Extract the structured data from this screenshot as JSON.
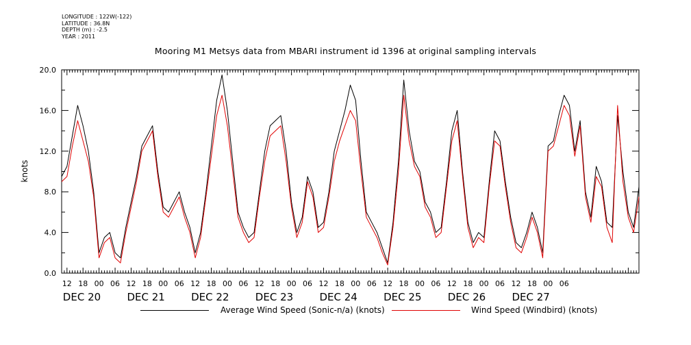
{
  "header": {
    "longitude": "LONGITUDE : 122W(-122)",
    "latitude": "LATITUDE : 36.8N",
    "depth": "DEPTH (m) : -2.5",
    "year": "YEAR : 2011"
  },
  "chart_data": {
    "type": "line",
    "title": "Mooring M1 Metsys data from MBARI instrument id 1396 at original sampling intervals",
    "ylabel": "knots",
    "xlabel": "",
    "ylim": [
      0,
      20
    ],
    "yticks": [
      "0.0",
      "4.0",
      "8.0",
      "12.0",
      "16.0",
      "20.0"
    ],
    "xlim_hours": [
      10,
      226
    ],
    "hour_ticks": [
      "12",
      "18",
      "00",
      "06",
      "12",
      "18",
      "00",
      "06",
      "12",
      "18",
      "00",
      "06",
      "12",
      "18",
      "00",
      "06",
      "12",
      "18",
      "00",
      "06",
      "12",
      "18",
      "00",
      "06",
      "12",
      "18",
      "00",
      "06",
      "12",
      "18",
      "00",
      "06"
    ],
    "day_labels": [
      "DEC 20",
      "DEC 21",
      "DEC 22",
      "DEC 23",
      "DEC 24",
      "DEC 25",
      "DEC 26",
      "DEC 27"
    ],
    "grid": false,
    "legend_position": "bottom",
    "series": [
      {
        "name": "Average Wind Speed (Sonic-n/a) (knots)",
        "color": "#000000",
        "x": [
          10,
          12,
          14,
          16,
          18,
          20,
          22,
          24,
          26,
          28,
          30,
          32,
          34,
          36,
          38,
          40,
          42,
          44,
          46,
          48,
          50,
          52,
          54,
          56,
          58,
          60,
          62,
          64,
          66,
          68,
          70,
          72,
          74,
          76,
          78,
          80,
          82,
          84,
          86,
          88,
          90,
          92,
          94,
          96,
          98,
          100,
          102,
          104,
          106,
          108,
          110,
          112,
          114,
          116,
          118,
          120,
          122,
          124,
          126,
          128,
          130,
          132,
          134,
          136,
          138,
          140,
          142,
          144,
          146,
          148,
          150,
          152,
          154,
          156,
          158,
          160,
          162,
          164,
          166,
          168,
          170,
          172,
          174,
          176,
          178,
          180,
          182,
          184,
          186,
          188,
          190,
          192,
          194,
          196,
          198,
          200,
          202,
          204,
          206,
          208,
          210,
          212,
          214,
          216,
          218,
          220,
          222,
          224,
          226
        ],
        "values": [
          9.5,
          10.5,
          13.5,
          16.5,
          14.5,
          12.0,
          8.0,
          2.0,
          3.5,
          4.0,
          2.0,
          1.5,
          4.5,
          7.0,
          9.5,
          12.5,
          13.5,
          14.5,
          10.0,
          6.5,
          6.0,
          7.0,
          8.0,
          6.0,
          4.5,
          2.0,
          4.0,
          8.0,
          12.5,
          17.0,
          19.5,
          16.0,
          11.0,
          6.0,
          4.5,
          3.5,
          4.0,
          8.0,
          12.0,
          14.5,
          15.0,
          15.5,
          12.0,
          7.0,
          4.0,
          5.5,
          9.5,
          8.0,
          4.5,
          5.0,
          8.0,
          12.0,
          14.0,
          16.0,
          18.5,
          17.0,
          11.0,
          6.0,
          5.0,
          4.0,
          2.5,
          1.0,
          5.0,
          11.0,
          19.0,
          14.0,
          11.0,
          10.0,
          7.0,
          6.0,
          4.0,
          4.5,
          9.0,
          14.0,
          16.0,
          10.0,
          5.0,
          3.0,
          4.0,
          3.5,
          9.0,
          14.0,
          13.0,
          9.0,
          5.5,
          3.0,
          2.5,
          4.0,
          6.0,
          4.5,
          2.0,
          12.5,
          13.0,
          15.5,
          17.5,
          16.5,
          12.0,
          15.0,
          8.0,
          5.5,
          10.5,
          9.0,
          5.0,
          4.5,
          15.5,
          10.0,
          6.0,
          4.5,
          8.5
        ]
      },
      {
        "name": "Wind Speed (Windbird) (knots)",
        "color": "#e00000",
        "x": [
          10,
          12,
          14,
          16,
          18,
          20,
          22,
          24,
          26,
          28,
          30,
          32,
          34,
          36,
          38,
          40,
          42,
          44,
          46,
          48,
          50,
          52,
          54,
          56,
          58,
          60,
          62,
          64,
          66,
          68,
          70,
          72,
          74,
          76,
          78,
          80,
          82,
          84,
          86,
          88,
          90,
          92,
          94,
          96,
          98,
          100,
          102,
          104,
          106,
          108,
          110,
          112,
          114,
          116,
          118,
          120,
          122,
          124,
          126,
          128,
          130,
          132,
          134,
          136,
          138,
          140,
          142,
          144,
          146,
          148,
          150,
          152,
          154,
          156,
          158,
          160,
          162,
          164,
          166,
          168,
          170,
          172,
          174,
          176,
          178,
          180,
          182,
          184,
          186,
          188,
          190,
          192,
          194,
          196,
          198,
          200,
          202,
          204,
          206,
          208,
          210,
          212,
          214,
          216,
          218,
          220,
          222,
          224,
          226
        ],
        "values": [
          9.0,
          9.5,
          12.5,
          15.0,
          13.0,
          11.0,
          7.5,
          1.5,
          3.0,
          3.5,
          1.5,
          1.0,
          4.0,
          6.5,
          9.0,
          12.0,
          13.0,
          14.0,
          9.5,
          6.0,
          5.5,
          6.5,
          7.5,
          5.5,
          4.0,
          1.5,
          3.5,
          7.5,
          11.5,
          15.5,
          17.5,
          14.5,
          10.0,
          5.5,
          4.0,
          3.0,
          3.5,
          7.5,
          11.0,
          13.5,
          14.0,
          14.5,
          11.0,
          6.5,
          3.5,
          5.0,
          9.0,
          7.5,
          4.0,
          4.5,
          7.5,
          11.0,
          13.0,
          14.5,
          16.0,
          15.0,
          10.0,
          5.5,
          4.5,
          3.5,
          2.0,
          0.8,
          4.5,
          10.0,
          17.5,
          13.0,
          10.5,
          9.5,
          6.5,
          5.5,
          3.5,
          4.0,
          8.5,
          13.0,
          15.0,
          9.5,
          4.5,
          2.5,
          3.5,
          3.0,
          8.5,
          13.0,
          12.5,
          8.5,
          5.0,
          2.5,
          2.0,
          3.5,
          5.5,
          4.0,
          1.5,
          12.0,
          12.5,
          14.5,
          16.5,
          15.5,
          11.5,
          14.5,
          7.5,
          5.0,
          9.5,
          8.5,
          4.5,
          3.0,
          16.5,
          9.0,
          5.5,
          4.0,
          7.5
        ]
      }
    ]
  }
}
